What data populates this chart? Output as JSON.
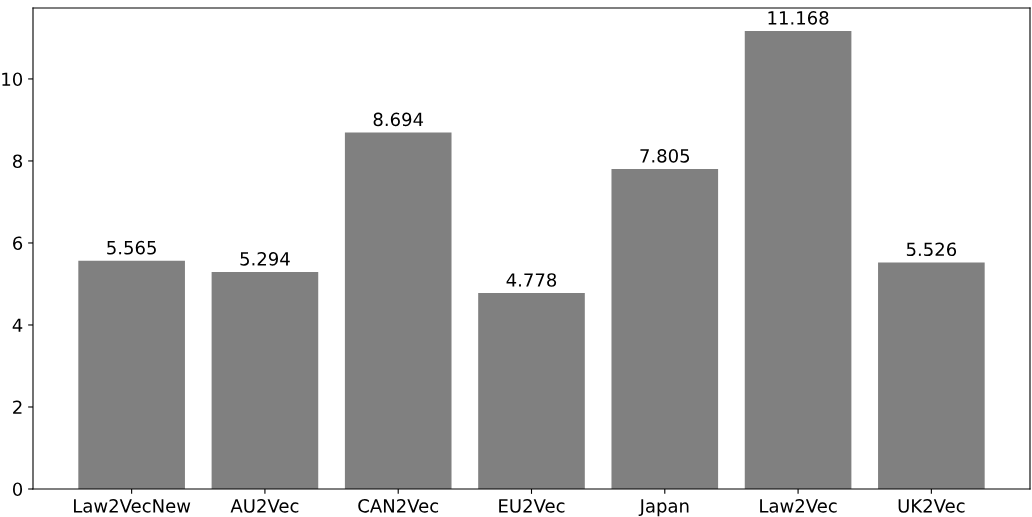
{
  "chart_data": {
    "type": "bar",
    "categories": [
      "Law2VecNew",
      "AU2Vec",
      "CAN2Vec",
      "EU2Vec",
      "Japan",
      "Law2Vec",
      "UK2Vec"
    ],
    "values": [
      5.565,
      5.294,
      8.694,
      4.778,
      7.805,
      11.168,
      5.526
    ],
    "color": "#808080",
    "ylim": [
      0,
      11.73
    ],
    "yticks": [
      0,
      2,
      4,
      6,
      8,
      10
    ],
    "data_labels": true,
    "grid": false,
    "legend": false
  }
}
